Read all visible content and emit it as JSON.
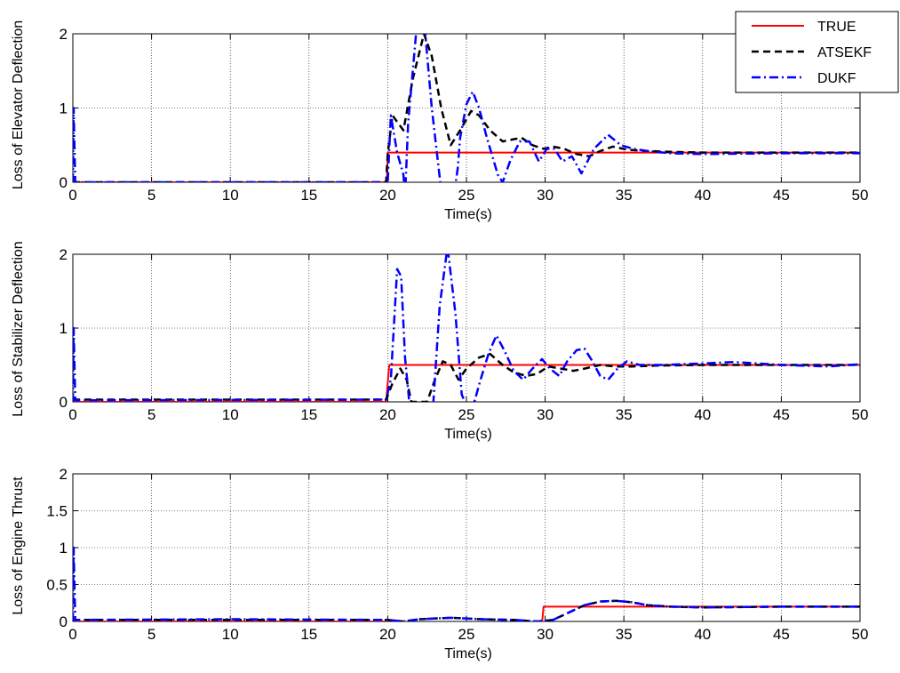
{
  "colors": {
    "true": "#ff0000",
    "atsekf": "#000000",
    "dukf": "#0000ff",
    "grid": "#000000"
  },
  "legend": [
    "TRUE",
    "ATSEKF",
    "DUKF"
  ],
  "chart_data": [
    {
      "type": "line",
      "title": "",
      "xlabel": "Time(s)",
      "ylabel": "Loss of Elevator Deflection",
      "xlim": [
        0,
        50
      ],
      "ylim": [
        0,
        2
      ],
      "xticks": [
        "0",
        "5",
        "10",
        "15",
        "20",
        "25",
        "30",
        "35",
        "40",
        "45",
        "50"
      ],
      "yticks": [
        "0",
        "1",
        "2"
      ],
      "grid": true,
      "legend": "top-right",
      "series": [
        {
          "name": "TRUE",
          "style": "solid",
          "x": [
            0,
            19.95,
            20.0,
            50
          ],
          "y": [
            0,
            0,
            0.4,
            0.4
          ]
        },
        {
          "name": "ATSEKF",
          "style": "dashed",
          "x": [
            0,
            19.9,
            20.0,
            20.3,
            21.0,
            21.6,
            22.3,
            22.8,
            23.4,
            24.0,
            24.6,
            25.3,
            25.8,
            26.5,
            27.3,
            28.0,
            28.5,
            29.2,
            29.9,
            30.5,
            31.2,
            32.0,
            32.8,
            33.5,
            34.3,
            35.2,
            36.5,
            38.0,
            40.0,
            45.0,
            50.0
          ],
          "y": [
            0,
            0,
            0.38,
            0.9,
            0.7,
            1.4,
            2.0,
            1.7,
            1.0,
            0.5,
            0.7,
            0.96,
            0.9,
            0.7,
            0.55,
            0.58,
            0.6,
            0.5,
            0.45,
            0.48,
            0.45,
            0.38,
            0.35,
            0.42,
            0.48,
            0.44,
            0.42,
            0.41,
            0.4,
            0.4,
            0.4
          ]
        },
        {
          "name": "DUKF",
          "style": "dashdot",
          "x": [
            0,
            0.05,
            0.15,
            19.9,
            20.0,
            20.2,
            20.6,
            21.0,
            21.1,
            21.3,
            21.8,
            22.3,
            22.8,
            23.5,
            24.2,
            24.45,
            24.6,
            25.0,
            25.4,
            25.8,
            26.3,
            27.0,
            27.3,
            27.8,
            28.4,
            29.0,
            29.6,
            30.1,
            30.6,
            31.1,
            31.7,
            32.3,
            33.1,
            34.0,
            34.8,
            35.6,
            36.5,
            38.0,
            40.0,
            45.0,
            50.0
          ],
          "y": [
            0.0,
            1.0,
            0.0,
            0.0,
            0.0,
            0.9,
            0.4,
            0.1,
            -0.2,
            0.8,
            2.0,
            2.2,
            1.0,
            -0.3,
            -0.2,
            0.2,
            0.6,
            1.05,
            1.22,
            1.0,
            0.6,
            0.1,
            0.0,
            0.3,
            0.55,
            0.55,
            0.28,
            0.45,
            0.45,
            0.28,
            0.35,
            0.12,
            0.45,
            0.64,
            0.5,
            0.45,
            0.42,
            0.39,
            0.38,
            0.39,
            0.39
          ]
        }
      ]
    },
    {
      "type": "line",
      "title": "",
      "xlabel": "Time(s)",
      "ylabel": "Loss of Stabilizer Deflection",
      "xlim": [
        0,
        50
      ],
      "ylim": [
        0,
        2
      ],
      "xticks": [
        "0",
        "5",
        "10",
        "15",
        "20",
        "25",
        "30",
        "35",
        "40",
        "45",
        "50"
      ],
      "yticks": [
        "0",
        "1",
        "2"
      ],
      "grid": true,
      "series": [
        {
          "name": "TRUE",
          "style": "solid",
          "x": [
            0,
            19.9,
            20.1,
            50
          ],
          "y": [
            0,
            0,
            0.5,
            0.5
          ]
        },
        {
          "name": "ATSEKF",
          "style": "dashed",
          "x": [
            0,
            19.9,
            20.3,
            20.8,
            21.2,
            21.5,
            22.0,
            22.5,
            23.0,
            23.5,
            24.0,
            24.5,
            25.0,
            25.8,
            26.5,
            27.3,
            28.0,
            28.8,
            29.5,
            30.2,
            31.0,
            31.8,
            32.5,
            33.5,
            34.5,
            35.5,
            37.0,
            40.0,
            50.0
          ],
          "y": [
            0.03,
            0.03,
            0.25,
            0.45,
            0.3,
            0.0,
            0.0,
            0.0,
            0.3,
            0.55,
            0.5,
            0.3,
            0.45,
            0.6,
            0.65,
            0.5,
            0.4,
            0.35,
            0.38,
            0.48,
            0.45,
            0.42,
            0.45,
            0.5,
            0.48,
            0.48,
            0.49,
            0.5,
            0.5
          ]
        },
        {
          "name": "DUKF",
          "style": "dashdot",
          "x": [
            0,
            0.05,
            0.15,
            19.9,
            20.2,
            20.6,
            20.85,
            21.1,
            21.5,
            22.0,
            22.6,
            22.9,
            23.3,
            23.8,
            24.3,
            24.7,
            25.1,
            25.5,
            25.9,
            26.4,
            26.9,
            27.4,
            28.0,
            28.6,
            29.2,
            29.8,
            30.3,
            30.9,
            31.4,
            32.0,
            32.5,
            33.0,
            33.5,
            34.0,
            34.6,
            35.2,
            36.0,
            37.5,
            40.0,
            42.0,
            45.0,
            48.0,
            50.0
          ],
          "y": [
            0.0,
            1.0,
            0.02,
            0.03,
            0.3,
            1.8,
            1.7,
            0.6,
            -0.3,
            -0.3,
            -0.3,
            0.0,
            1.3,
            2.1,
            1.2,
            0.1,
            -0.1,
            0.0,
            0.3,
            0.65,
            0.9,
            0.7,
            0.42,
            0.3,
            0.45,
            0.58,
            0.45,
            0.35,
            0.55,
            0.7,
            0.72,
            0.55,
            0.35,
            0.3,
            0.45,
            0.55,
            0.5,
            0.5,
            0.52,
            0.54,
            0.5,
            0.48,
            0.51
          ]
        }
      ]
    },
    {
      "type": "line",
      "title": "",
      "xlabel": "Time(s)",
      "ylabel": "Loss of Engine Thrust",
      "xlim": [
        0,
        50
      ],
      "ylim": [
        0,
        2
      ],
      "xticks": [
        "0",
        "5",
        "10",
        "15",
        "20",
        "25",
        "30",
        "35",
        "40",
        "45",
        "50"
      ],
      "yticks": [
        "0",
        "0.5",
        "1",
        "1.5",
        "2"
      ],
      "grid": true,
      "series": [
        {
          "name": "TRUE",
          "style": "solid",
          "x": [
            0,
            21.0,
            21.3,
            29.8,
            29.9,
            50
          ],
          "y": [
            0,
            0,
            -0.02,
            -0.02,
            0.2,
            0.2
          ]
        },
        {
          "name": "ATSEKF",
          "style": "dashed",
          "x": [
            0,
            20.0,
            21.0,
            22.0,
            24.0,
            26.0,
            28.0,
            29.5,
            30.5,
            31.5,
            32.5,
            33.5,
            34.5,
            35.5,
            36.5,
            38.0,
            40.0,
            45.0,
            50.0
          ],
          "y": [
            0.02,
            0.02,
            0.0,
            0.03,
            0.05,
            0.03,
            0.02,
            0.0,
            0.02,
            0.12,
            0.22,
            0.27,
            0.28,
            0.26,
            0.22,
            0.2,
            0.19,
            0.2,
            0.2
          ]
        },
        {
          "name": "DUKF",
          "style": "dashdot",
          "x": [
            0,
            0.05,
            0.15,
            10.0,
            20.0,
            21.0,
            22.0,
            24.0,
            26.0,
            28.0,
            29.5,
            30.5,
            31.5,
            32.5,
            33.5,
            34.5,
            35.5,
            36.5,
            38.0,
            40.0,
            45.0,
            50.0
          ],
          "y": [
            0.0,
            1.0,
            0.02,
            0.03,
            0.02,
            0.0,
            0.03,
            0.05,
            0.03,
            0.02,
            0.0,
            0.02,
            0.12,
            0.22,
            0.27,
            0.28,
            0.26,
            0.22,
            0.2,
            0.19,
            0.2,
            0.2
          ]
        }
      ]
    }
  ]
}
